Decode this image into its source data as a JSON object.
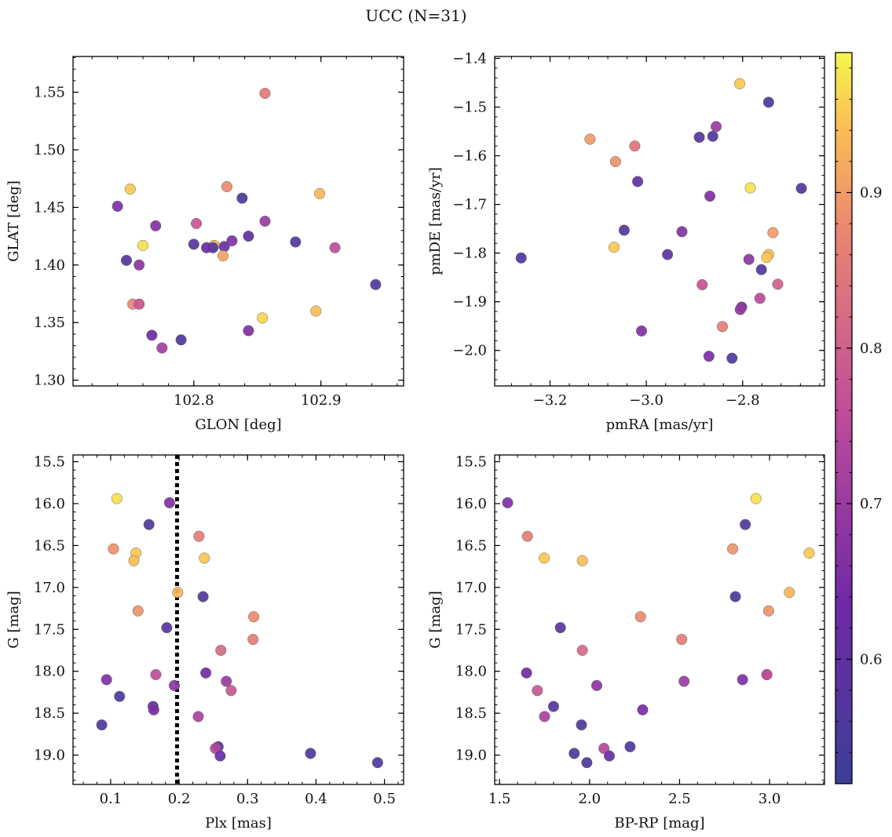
{
  "figure": {
    "title": "UCC (N=31)"
  },
  "colorbar": {
    "ticks": [
      0.6,
      0.7,
      0.8,
      0.9
    ],
    "range": [
      0.52,
      0.99
    ]
  },
  "chart_data": [
    {
      "type": "scatter",
      "xlabel": "GLON [deg]",
      "ylabel": "GLAT [deg]",
      "xlim": [
        102.705,
        102.965
      ],
      "ylim": [
        1.295,
        1.581
      ],
      "xticks": [
        102.8,
        102.9
      ],
      "xtick_labels": [
        "102.8",
        "102.9"
      ],
      "yticks": [
        1.3,
        1.35,
        1.4,
        1.45,
        1.5,
        1.55
      ],
      "ytick_labels": [
        "1.30",
        "1.35",
        "1.40",
        "1.45",
        "1.50",
        "1.55"
      ],
      "points": [
        {
          "x": 102.856,
          "y": 1.549,
          "c": 0.85
        },
        {
          "x": 102.75,
          "y": 1.466,
          "c": 0.95
        },
        {
          "x": 102.826,
          "y": 1.468,
          "c": 0.88
        },
        {
          "x": 102.899,
          "y": 1.462,
          "c": 0.93
        },
        {
          "x": 102.838,
          "y": 1.458,
          "c": 0.55
        },
        {
          "x": 102.74,
          "y": 1.451,
          "c": 0.66
        },
        {
          "x": 102.856,
          "y": 1.438,
          "c": 0.7
        },
        {
          "x": 102.802,
          "y": 1.436,
          "c": 0.78
        },
        {
          "x": 102.77,
          "y": 1.434,
          "c": 0.67
        },
        {
          "x": 102.843,
          "y": 1.425,
          "c": 0.6
        },
        {
          "x": 102.83,
          "y": 1.421,
          "c": 0.66
        },
        {
          "x": 102.88,
          "y": 1.42,
          "c": 0.57
        },
        {
          "x": 102.8,
          "y": 1.418,
          "c": 0.57
        },
        {
          "x": 102.76,
          "y": 1.417,
          "c": 0.97
        },
        {
          "x": 102.816,
          "y": 1.417,
          "c": 0.92
        },
        {
          "x": 102.824,
          "y": 1.416,
          "c": 0.62
        },
        {
          "x": 102.815,
          "y": 1.415,
          "c": 0.55
        },
        {
          "x": 102.911,
          "y": 1.415,
          "c": 0.76
        },
        {
          "x": 102.823,
          "y": 1.408,
          "c": 0.91
        },
        {
          "x": 102.747,
          "y": 1.404,
          "c": 0.58
        },
        {
          "x": 102.757,
          "y": 1.4,
          "c": 0.68
        },
        {
          "x": 102.943,
          "y": 1.383,
          "c": 0.56
        },
        {
          "x": 102.752,
          "y": 1.366,
          "c": 0.87
        },
        {
          "x": 102.757,
          "y": 1.366,
          "c": 0.78
        },
        {
          "x": 102.896,
          "y": 1.36,
          "c": 0.94
        },
        {
          "x": 102.854,
          "y": 1.354,
          "c": 0.96
        },
        {
          "x": 102.843,
          "y": 1.343,
          "c": 0.66
        },
        {
          "x": 102.767,
          "y": 1.339,
          "c": 0.63
        },
        {
          "x": 102.79,
          "y": 1.335,
          "c": 0.56
        },
        {
          "x": 102.775,
          "y": 1.328,
          "c": 0.71
        },
        {
          "x": 102.81,
          "y": 1.415,
          "c": 0.62
        }
      ]
    },
    {
      "type": "scatter",
      "xlabel": "pmRA [mas/yr]",
      "ylabel": "pmDE [mas/yr]",
      "xlim": [
        -3.315,
        -2.63
      ],
      "ylim": [
        -2.073,
        -1.396
      ],
      "xticks": [
        -3.2,
        -3.0,
        -2.8
      ],
      "xtick_labels": [
        "−3.2",
        "−3.0",
        "−2.8"
      ],
      "yticks": [
        -2.0,
        -1.9,
        -1.8,
        -1.7,
        -1.6,
        -1.5,
        -1.4
      ],
      "ytick_labels": [
        "−2.0",
        "−1.9",
        "−1.8",
        "−1.7",
        "−1.6",
        "−1.5",
        "−1.4"
      ],
      "points": [
        {
          "x": -2.806,
          "y": -1.452,
          "c": 0.95
        },
        {
          "x": -2.746,
          "y": -1.49,
          "c": 0.56
        },
        {
          "x": -2.855,
          "y": -1.54,
          "c": 0.7
        },
        {
          "x": -2.89,
          "y": -1.562,
          "c": 0.57
        },
        {
          "x": -2.862,
          "y": -1.56,
          "c": 0.57
        },
        {
          "x": -3.117,
          "y": -1.566,
          "c": 0.9
        },
        {
          "x": -3.024,
          "y": -1.58,
          "c": 0.84
        },
        {
          "x": -3.064,
          "y": -1.612,
          "c": 0.89
        },
        {
          "x": -3.018,
          "y": -1.653,
          "c": 0.6
        },
        {
          "x": -2.784,
          "y": -1.666,
          "c": 0.97
        },
        {
          "x": -2.678,
          "y": -1.667,
          "c": 0.56
        },
        {
          "x": -2.868,
          "y": -1.683,
          "c": 0.66
        },
        {
          "x": -3.046,
          "y": -1.753,
          "c": 0.57
        },
        {
          "x": -2.926,
          "y": -1.756,
          "c": 0.67
        },
        {
          "x": -2.737,
          "y": -1.758,
          "c": 0.9
        },
        {
          "x": -3.067,
          "y": -1.788,
          "c": 0.95
        },
        {
          "x": -2.956,
          "y": -1.803,
          "c": 0.58
        },
        {
          "x": -2.746,
          "y": -1.803,
          "c": 0.94
        },
        {
          "x": -2.75,
          "y": -1.809,
          "c": 0.95
        },
        {
          "x": -3.26,
          "y": -1.81,
          "c": 0.56
        },
        {
          "x": -2.787,
          "y": -1.813,
          "c": 0.68
        },
        {
          "x": -2.761,
          "y": -1.834,
          "c": 0.56
        },
        {
          "x": -2.884,
          "y": -1.865,
          "c": 0.77
        },
        {
          "x": -2.727,
          "y": -1.864,
          "c": 0.8
        },
        {
          "x": -2.764,
          "y": -1.893,
          "c": 0.75
        },
        {
          "x": -2.802,
          "y": -1.911,
          "c": 0.64
        },
        {
          "x": -2.805,
          "y": -1.916,
          "c": 0.69
        },
        {
          "x": -2.842,
          "y": -1.951,
          "c": 0.86
        },
        {
          "x": -3.01,
          "y": -1.96,
          "c": 0.66
        },
        {
          "x": -2.87,
          "y": -2.012,
          "c": 0.65
        },
        {
          "x": -2.822,
          "y": -2.016,
          "c": 0.56
        }
      ]
    },
    {
      "type": "scatter",
      "xlabel": "Plx [mas]",
      "ylabel": "G [mag]",
      "xlim": [
        0.045,
        0.528
      ],
      "ylim": [
        19.35,
        15.42
      ],
      "xticks": [
        0.1,
        0.2,
        0.3,
        0.4,
        0.5
      ],
      "xtick_labels": [
        "0.1",
        "0.2",
        "0.3",
        "0.4",
        "0.5"
      ],
      "yticks": [
        15.5,
        16.0,
        16.5,
        17.0,
        17.5,
        18.0,
        18.5,
        19.0
      ],
      "ytick_labels": [
        "15.5",
        "16.0",
        "16.5",
        "17.0",
        "17.5",
        "18.0",
        "18.5",
        "19.0"
      ],
      "vline": 0.197,
      "points": [
        {
          "x": 0.109,
          "y": 15.94,
          "c": 0.97
        },
        {
          "x": 0.186,
          "y": 15.99,
          "c": 0.66
        },
        {
          "x": 0.156,
          "y": 16.25,
          "c": 0.56
        },
        {
          "x": 0.229,
          "y": 16.39,
          "c": 0.86
        },
        {
          "x": 0.104,
          "y": 16.54,
          "c": 0.89
        },
        {
          "x": 0.137,
          "y": 16.59,
          "c": 0.95
        },
        {
          "x": 0.237,
          "y": 16.65,
          "c": 0.95
        },
        {
          "x": 0.134,
          "y": 16.68,
          "c": 0.94
        },
        {
          "x": 0.198,
          "y": 17.06,
          "c": 0.93
        },
        {
          "x": 0.235,
          "y": 17.11,
          "c": 0.56
        },
        {
          "x": 0.14,
          "y": 17.28,
          "c": 0.89
        },
        {
          "x": 0.309,
          "y": 17.35,
          "c": 0.88
        },
        {
          "x": 0.182,
          "y": 17.48,
          "c": 0.58
        },
        {
          "x": 0.308,
          "y": 17.62,
          "c": 0.86
        },
        {
          "x": 0.261,
          "y": 17.75,
          "c": 0.82
        },
        {
          "x": 0.239,
          "y": 18.02,
          "c": 0.64
        },
        {
          "x": 0.166,
          "y": 18.04,
          "c": 0.76
        },
        {
          "x": 0.094,
          "y": 18.1,
          "c": 0.66
        },
        {
          "x": 0.269,
          "y": 18.12,
          "c": 0.7
        },
        {
          "x": 0.193,
          "y": 18.17,
          "c": 0.68
        },
        {
          "x": 0.276,
          "y": 18.23,
          "c": 0.78
        },
        {
          "x": 0.113,
          "y": 18.3,
          "c": 0.56
        },
        {
          "x": 0.162,
          "y": 18.42,
          "c": 0.58
        },
        {
          "x": 0.163,
          "y": 18.46,
          "c": 0.65
        },
        {
          "x": 0.228,
          "y": 18.54,
          "c": 0.72
        },
        {
          "x": 0.087,
          "y": 18.64,
          "c": 0.56
        },
        {
          "x": 0.257,
          "y": 18.9,
          "c": 0.56
        },
        {
          "x": 0.253,
          "y": 18.92,
          "c": 0.74
        },
        {
          "x": 0.26,
          "y": 19.01,
          "c": 0.62
        },
        {
          "x": 0.392,
          "y": 18.98,
          "c": 0.56
        },
        {
          "x": 0.49,
          "y": 19.09,
          "c": 0.56
        }
      ]
    },
    {
      "type": "scatter",
      "xlabel": "BP-RP [mag]",
      "ylabel": "G [mag]",
      "xlim": [
        1.473,
        3.305
      ],
      "ylim": [
        19.35,
        15.42
      ],
      "xticks": [
        1.5,
        2.0,
        2.5,
        3.0
      ],
      "xtick_labels": [
        "1.5",
        "2.0",
        "2.5",
        "3.0"
      ],
      "yticks": [
        15.5,
        16.0,
        16.5,
        17.0,
        17.5,
        18.0,
        18.5,
        19.0
      ],
      "ytick_labels": [
        "15.5",
        "16.0",
        "16.5",
        "17.0",
        "17.5",
        "18.0",
        "18.5",
        "19.0"
      ],
      "points": [
        {
          "x": 1.545,
          "y": 15.99,
          "c": 0.66
        },
        {
          "x": 2.924,
          "y": 15.94,
          "c": 0.97
        },
        {
          "x": 2.865,
          "y": 16.25,
          "c": 0.56
        },
        {
          "x": 1.655,
          "y": 16.39,
          "c": 0.86
        },
        {
          "x": 2.795,
          "y": 16.54,
          "c": 0.89
        },
        {
          "x": 3.22,
          "y": 16.59,
          "c": 0.95
        },
        {
          "x": 1.748,
          "y": 16.65,
          "c": 0.95
        },
        {
          "x": 1.96,
          "y": 16.68,
          "c": 0.94
        },
        {
          "x": 3.11,
          "y": 17.06,
          "c": 0.93
        },
        {
          "x": 2.81,
          "y": 17.11,
          "c": 0.56
        },
        {
          "x": 2.995,
          "y": 17.28,
          "c": 0.89
        },
        {
          "x": 2.283,
          "y": 17.35,
          "c": 0.88
        },
        {
          "x": 1.838,
          "y": 17.48,
          "c": 0.58
        },
        {
          "x": 2.512,
          "y": 17.62,
          "c": 0.86
        },
        {
          "x": 1.96,
          "y": 17.75,
          "c": 0.82
        },
        {
          "x": 1.65,
          "y": 18.02,
          "c": 0.64
        },
        {
          "x": 2.985,
          "y": 18.04,
          "c": 0.76
        },
        {
          "x": 2.85,
          "y": 18.1,
          "c": 0.66
        },
        {
          "x": 2.525,
          "y": 18.12,
          "c": 0.7
        },
        {
          "x": 2.04,
          "y": 18.17,
          "c": 0.68
        },
        {
          "x": 1.71,
          "y": 18.23,
          "c": 0.78
        },
        {
          "x": 2.295,
          "y": 18.46,
          "c": 0.65
        },
        {
          "x": 1.8,
          "y": 18.42,
          "c": 0.58
        },
        {
          "x": 1.75,
          "y": 18.54,
          "c": 0.72
        },
        {
          "x": 1.955,
          "y": 18.64,
          "c": 0.56
        },
        {
          "x": 2.225,
          "y": 18.9,
          "c": 0.56
        },
        {
          "x": 2.08,
          "y": 18.92,
          "c": 0.74
        },
        {
          "x": 1.915,
          "y": 18.98,
          "c": 0.56
        },
        {
          "x": 2.11,
          "y": 19.01,
          "c": 0.62
        },
        {
          "x": 1.985,
          "y": 19.09,
          "c": 0.56
        },
        {
          "x": 2.985,
          "y": 18.04,
          "c": 0.76
        }
      ]
    }
  ]
}
